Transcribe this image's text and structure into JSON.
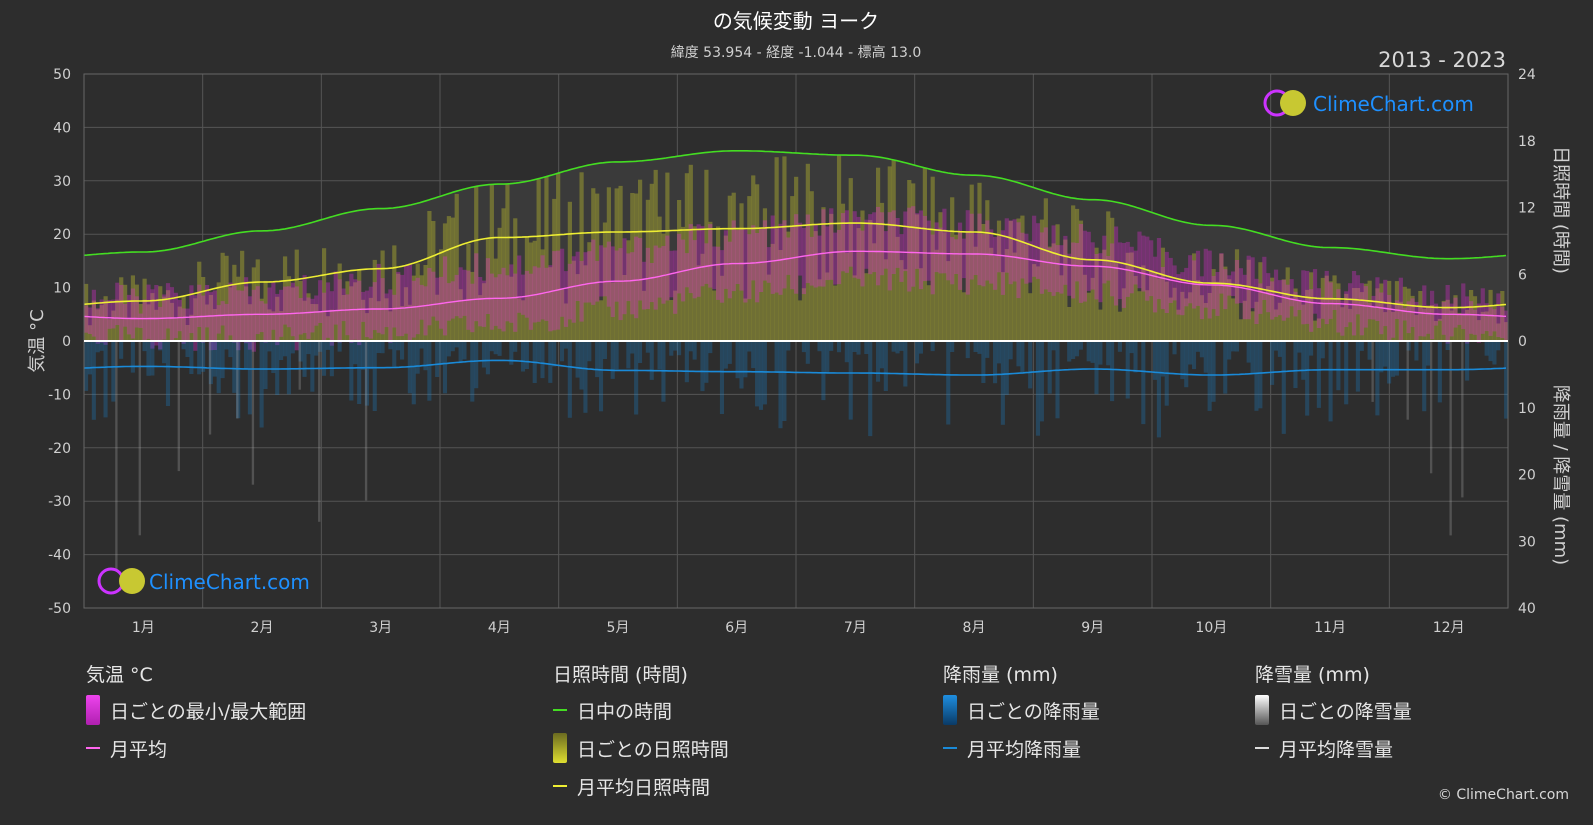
{
  "header": {
    "title": "の気候変動 ヨーク",
    "subtitle": "緯度 53.954 - 経度 -1.044 - 標高 13.0",
    "period": "2013 - 2023"
  },
  "branding": {
    "logo_text": "ClimeChart.com",
    "copyright": "© ClimeChart.com"
  },
  "axes": {
    "left_title": "気温 °C",
    "right_top_title": "日照時間 (時間)",
    "right_bottom_title": "降雨量 / 降雪量 (mm)"
  },
  "legend": {
    "temperature": {
      "heading": "気温 °C",
      "range": "日ごとの最小/最大範囲",
      "avg": "月平均"
    },
    "sunshine": {
      "heading": "日照時間 (時間)",
      "daylight": "日中の時間",
      "daily": "日ごとの日照時間",
      "avg": "月平均日照時間"
    },
    "rain": {
      "heading": "降雨量 (mm)",
      "daily": "日ごとの降雨量",
      "avg": "月平均降雨量"
    },
    "snow": {
      "heading": "降雪量 (mm)",
      "daily": "日ごとの降雪量",
      "avg": "月平均降雪量"
    }
  },
  "colors": {
    "daylight": "#44dd22",
    "sunshine_avg": "#eeee33",
    "sunshine_bar": "#9a9a30",
    "temp_avg": "#ff66ee",
    "temp_range": "#dd2ad0",
    "rain": "#1a8ad8",
    "snow": "#aaaaaa",
    "background": "#2d2d2d"
  },
  "chart_data": {
    "type": "area",
    "months": [
      "1月",
      "2月",
      "3月",
      "4月",
      "5月",
      "6月",
      "7月",
      "8月",
      "9月",
      "10月",
      "11月",
      "12月"
    ],
    "left_axis": {
      "label": "気温 °C",
      "ylim": [
        -50,
        50
      ],
      "ticks": [
        50,
        40,
        30,
        20,
        10,
        0,
        -10,
        -20,
        -30,
        -40,
        -50
      ]
    },
    "right_axis_top": {
      "label": "日照時間 (時間)",
      "ylim": [
        0,
        24
      ],
      "ticks": [
        24,
        18,
        12,
        6,
        0
      ]
    },
    "right_axis_bottom": {
      "label": "降雨量 / 降雪量 (mm)",
      "ylim": [
        0,
        40
      ],
      "ticks": [
        0,
        10,
        20,
        30,
        40
      ]
    },
    "grid": true,
    "series": [
      {
        "name": "日中の時間",
        "unit": "時間",
        "values": [
          8.0,
          9.9,
          11.9,
          14.1,
          16.1,
          17.1,
          16.7,
          14.9,
          12.7,
          10.4,
          8.4,
          7.4
        ]
      },
      {
        "name": "月平均日照時間",
        "unit": "時間",
        "values": [
          3.6,
          5.3,
          6.5,
          9.3,
          9.8,
          10.1,
          10.6,
          9.8,
          7.3,
          5.2,
          3.8,
          3.0
        ]
      },
      {
        "name": "月平均",
        "unit": "°C",
        "values": [
          4.2,
          5.0,
          6.0,
          8.0,
          11.2,
          14.5,
          16.8,
          16.3,
          14.0,
          10.5,
          7.0,
          5.0
        ]
      },
      {
        "name": "月平均降雨量",
        "unit": "mm",
        "values": [
          3.8,
          4.2,
          4.0,
          2.9,
          4.4,
          4.6,
          4.8,
          5.1,
          4.2,
          5.1,
          4.3,
          4.3
        ]
      },
      {
        "name": "月平均降雪量",
        "unit": "mm",
        "values": [
          0.1,
          0.1,
          0.05,
          0,
          0,
          0,
          0,
          0,
          0,
          0,
          0,
          0.05
        ]
      }
    ],
    "daily_temp_range_approx": {
      "min": [
        0.5,
        0.5,
        1.5,
        3.0,
        6.0,
        9.0,
        11.5,
        11.0,
        9.0,
        6.5,
        3.5,
        1.5
      ],
      "max": [
        8.0,
        9.0,
        11.5,
        14.0,
        17.0,
        20.0,
        22.5,
        22.0,
        19.0,
        14.5,
        10.5,
        8.0
      ]
    },
    "legend_position": "bottom"
  }
}
